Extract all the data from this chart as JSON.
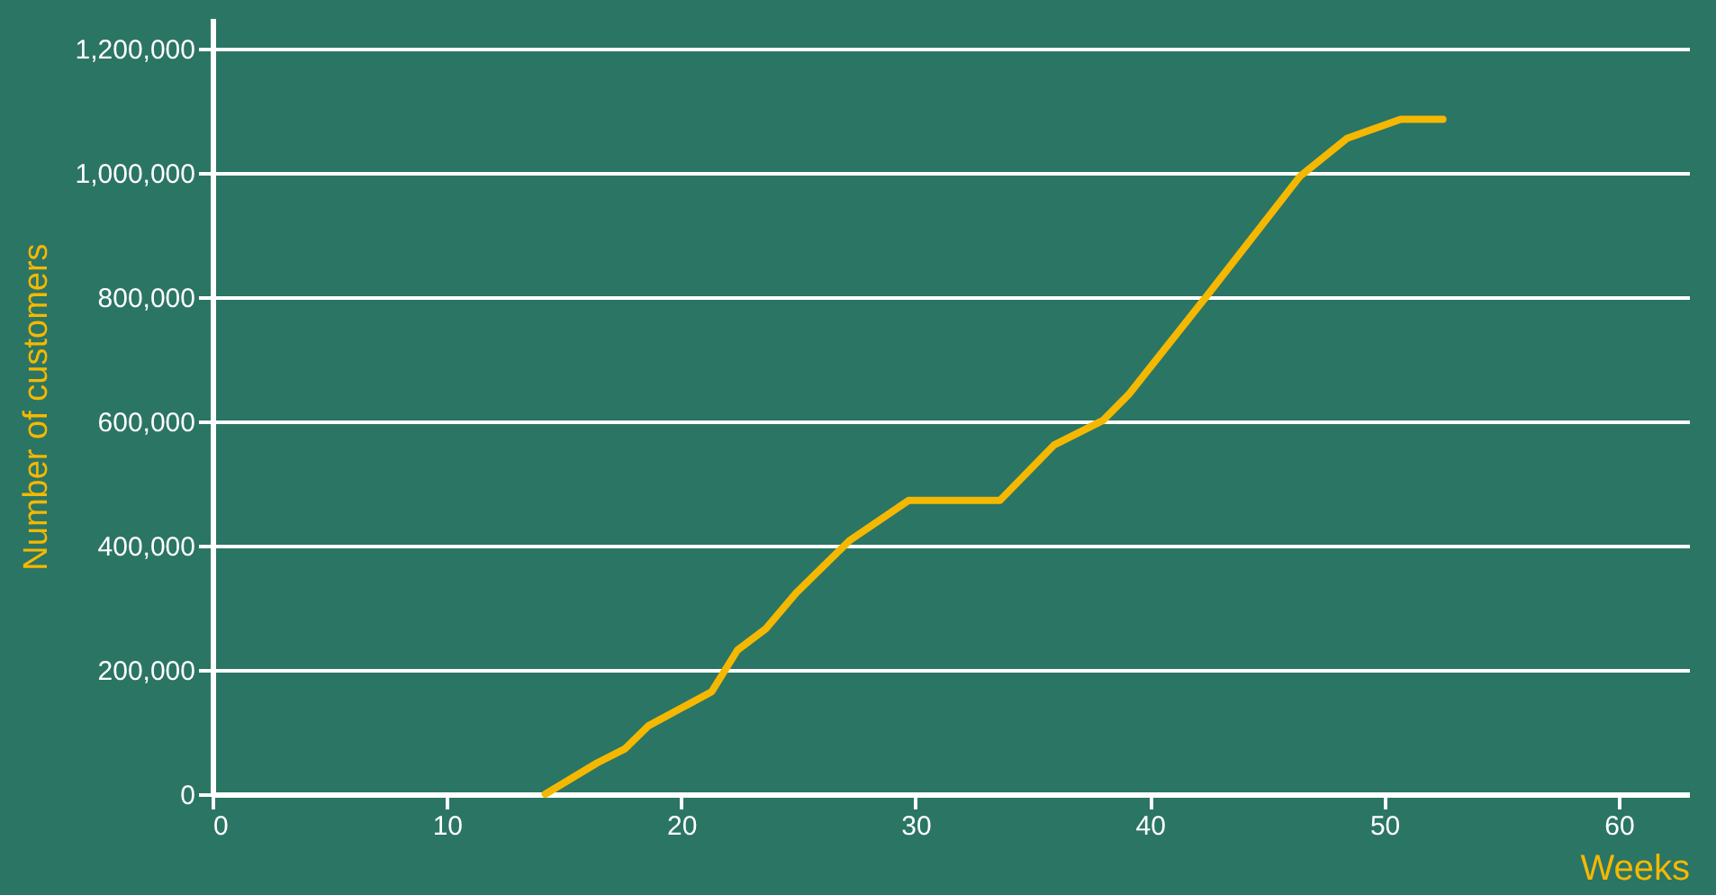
{
  "chart_data": {
    "type": "line",
    "xlabel": "Weeks",
    "ylabel": "Number of customers",
    "x": [
      14.2,
      16.4,
      17.6,
      18.6,
      21.3,
      22.4,
      23.6,
      24.9,
      27.2,
      29.7,
      33.6,
      35.9,
      38.0,
      39.1,
      42.5,
      44.4,
      46.4,
      48.4,
      50.7,
      52.5
    ],
    "series": [
      {
        "color": "#f5b800",
        "values": [
          0,
          50000,
          73000,
          110000,
          165000,
          232000,
          266000,
          324000,
          409000,
          473000,
          473000,
          562000,
          602000,
          644000,
          806000,
          898000,
          995000,
          1056000,
          1087000,
          1087000
        ]
      }
    ],
    "xlim": [
      0,
      63
    ],
    "xticks": [
      0,
      10,
      20,
      30,
      40,
      50,
      60
    ],
    "ylim": [
      0,
      1250000
    ],
    "yticks": [
      0,
      {
        "value": 200000,
        "label": "200,000"
      },
      {
        "value": 400000,
        "label": "400,000"
      },
      {
        "value": 600000,
        "label": "600,000"
      },
      {
        "value": 800000,
        "label": "800,000"
      },
      {
        "value": 1000000,
        "label": "1,000,000"
      },
      {
        "value": 1200000,
        "label": "1,200,000"
      }
    ],
    "grid": "y",
    "marker": "none",
    "line_style": "solid"
  }
}
